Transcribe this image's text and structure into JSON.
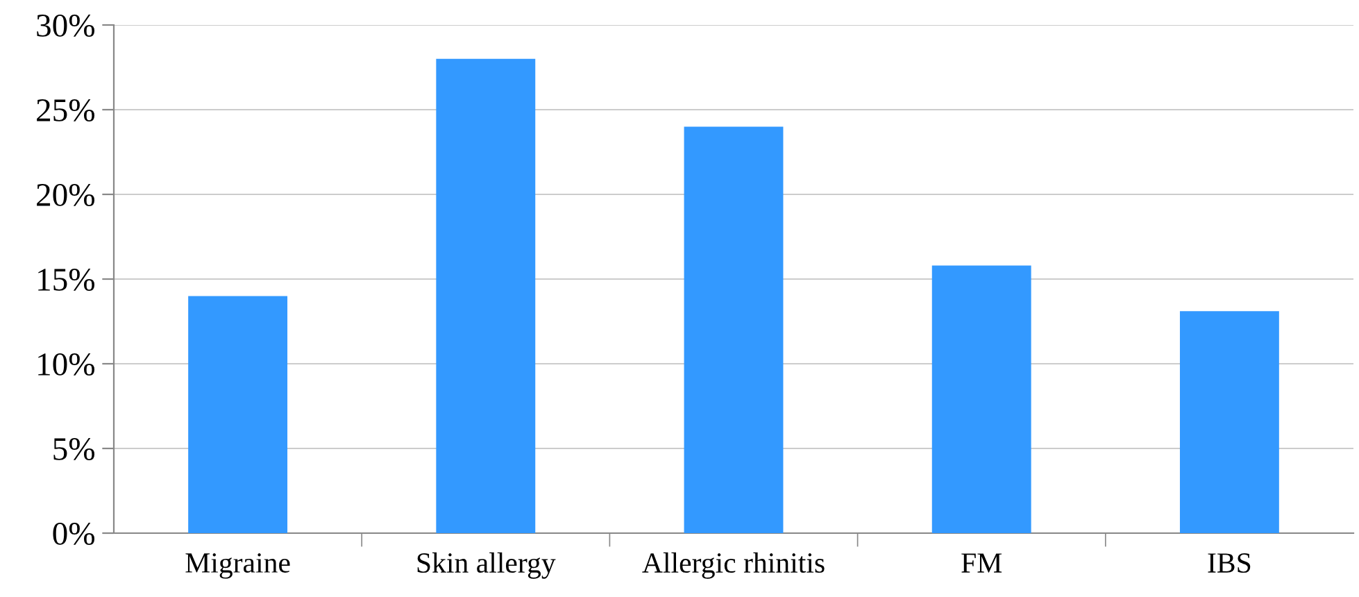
{
  "chart_data": {
    "type": "bar",
    "categories": [
      "Migraine",
      "Skin allergy",
      "Allergic rhinitis",
      "FM",
      "IBS"
    ],
    "values": [
      14.0,
      28.0,
      24.0,
      15.8,
      13.1
    ],
    "color": "#3399ff",
    "ylim": [
      0,
      30
    ],
    "yticks": [
      {
        "value": 0,
        "label": "0%"
      },
      {
        "value": 5,
        "label": "5%"
      },
      {
        "value": 10,
        "label": "10%"
      },
      {
        "value": 15,
        "label": "15%"
      },
      {
        "value": 20,
        "label": "20%"
      },
      {
        "value": 25,
        "label": "25%"
      },
      {
        "value": 30,
        "label": "30%"
      }
    ],
    "grid": "y",
    "legend": false
  }
}
